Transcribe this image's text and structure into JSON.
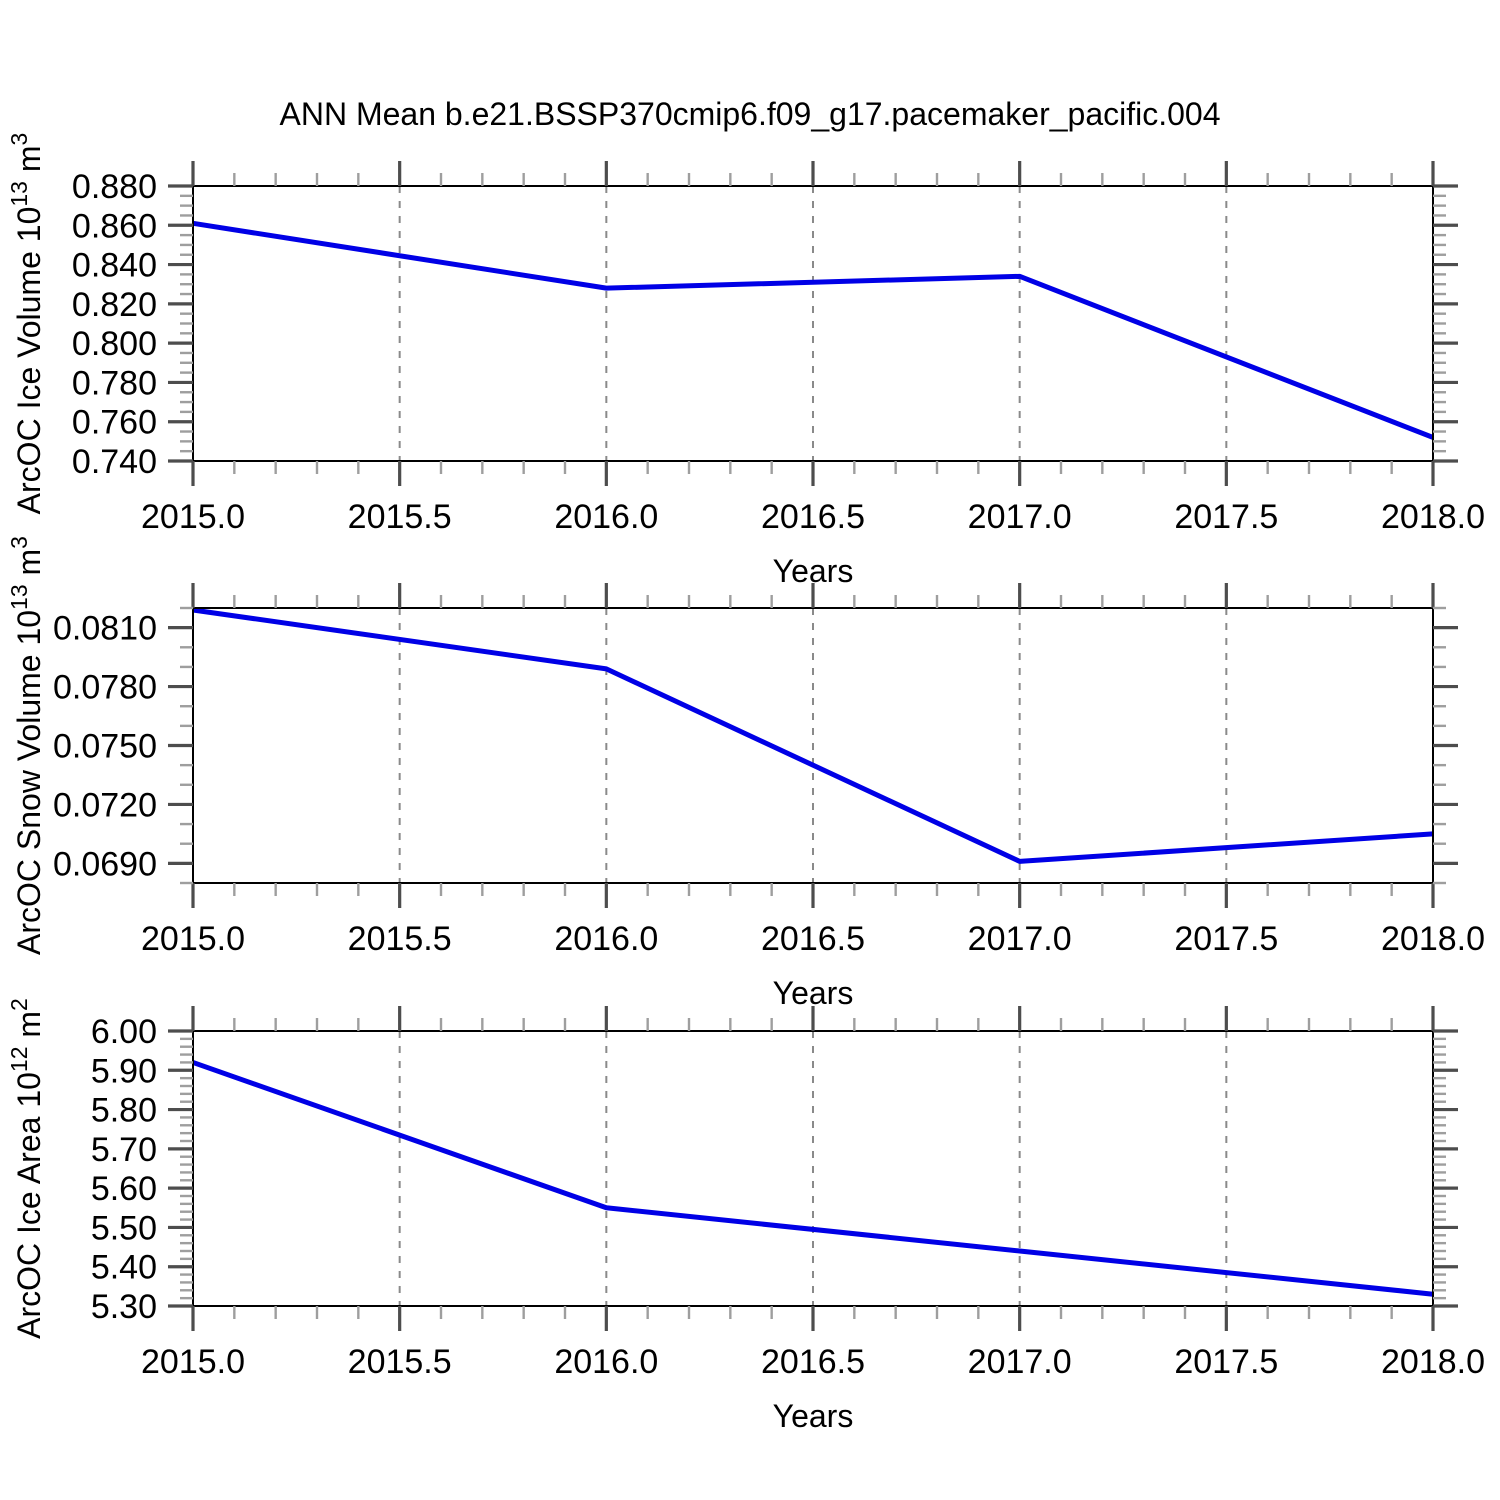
{
  "title": "ANN Mean b.e21.BSSP370cmip6.f09_g17.pacemaker_pacific.004",
  "colors": {
    "background": "#ffffff",
    "line": "#0000e6",
    "grid": "#8a8a8a",
    "frame": "#000000",
    "tick_major": "#4d4d4d",
    "tick_minor": "#9e9e9e",
    "text": "#000000"
  },
  "x_axis": {
    "label": "Years",
    "min": 2015.0,
    "max": 2018.0,
    "major_step": 0.5,
    "minor_step": 0.1,
    "tick_labels": [
      "2015.0",
      "2015.5",
      "2016.0",
      "2016.5",
      "2017.0",
      "2017.5",
      "2018.0"
    ]
  },
  "chart_data": [
    {
      "type": "line",
      "name": "arcoc-ice-volume",
      "ylabel_segments": [
        {
          "text": "ArcOC Ice Volume 10"
        },
        {
          "text": "13",
          "sup": true
        },
        {
          "text": " m"
        },
        {
          "text": "3",
          "sup": true
        }
      ],
      "x": [
        2015.0,
        2016.0,
        2017.0,
        2018.0
      ],
      "values": [
        0.861,
        0.828,
        0.834,
        0.752
      ],
      "ylim": [
        0.74,
        0.88
      ],
      "yticks": [
        {
          "v": 0.88,
          "label": "0.880"
        },
        {
          "v": 0.86,
          "label": "0.860"
        },
        {
          "v": 0.84,
          "label": "0.840"
        },
        {
          "v": 0.82,
          "label": "0.820"
        },
        {
          "v": 0.8,
          "label": "0.800"
        },
        {
          "v": 0.78,
          "label": "0.780"
        },
        {
          "v": 0.76,
          "label": "0.760"
        },
        {
          "v": 0.74,
          "label": "0.740"
        }
      ],
      "ytick_minor_step": 0.005,
      "grid": true
    },
    {
      "type": "line",
      "name": "arcoc-snow-volume",
      "ylabel_segments": [
        {
          "text": "ArcOC Snow Volume 10"
        },
        {
          "text": "13",
          "sup": true
        },
        {
          "text": " m"
        },
        {
          "text": "3",
          "sup": true
        }
      ],
      "x": [
        2015.0,
        2016.0,
        2017.0,
        2018.0
      ],
      "values": [
        0.0819,
        0.0789,
        0.0691,
        0.0705
      ],
      "ylim": [
        0.068,
        0.082
      ],
      "yticks": [
        {
          "v": 0.081,
          "label": "0.0810"
        },
        {
          "v": 0.078,
          "label": "0.0780"
        },
        {
          "v": 0.075,
          "label": "0.0750"
        },
        {
          "v": 0.072,
          "label": "0.0720"
        },
        {
          "v": 0.069,
          "label": "0.0690"
        }
      ],
      "ytick_minor_step": 0.001,
      "grid": true
    },
    {
      "type": "line",
      "name": "arcoc-ice-area",
      "ylabel_segments": [
        {
          "text": "ArcOC Ice Area 10"
        },
        {
          "text": "12",
          "sup": true
        },
        {
          "text": " m"
        },
        {
          "text": "2",
          "sup": true
        }
      ],
      "x": [
        2015.0,
        2016.0,
        2017.0,
        2018.0
      ],
      "values": [
        5.92,
        5.55,
        5.44,
        5.33
      ],
      "ylim": [
        5.3,
        6.0
      ],
      "yticks": [
        {
          "v": 6.0,
          "label": "6.00"
        },
        {
          "v": 5.9,
          "label": "5.90"
        },
        {
          "v": 5.8,
          "label": "5.80"
        },
        {
          "v": 5.7,
          "label": "5.70"
        },
        {
          "v": 5.6,
          "label": "5.60"
        },
        {
          "v": 5.5,
          "label": "5.50"
        },
        {
          "v": 5.4,
          "label": "5.40"
        },
        {
          "v": 5.3,
          "label": "5.30"
        }
      ],
      "ytick_minor_step": 0.02,
      "grid": true
    }
  ]
}
